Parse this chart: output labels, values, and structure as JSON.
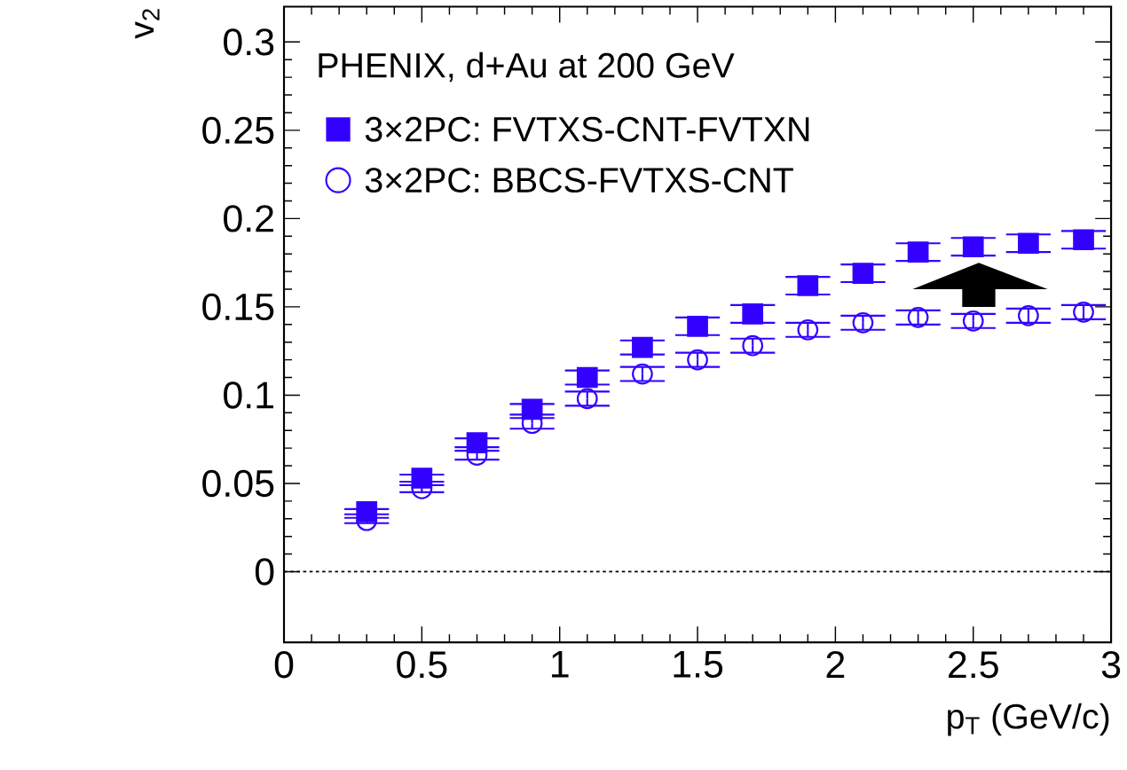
{
  "chart_data": {
    "type": "scatter",
    "legend_title": "PHENIX, d+Au at 200 GeV",
    "xlabel": "p$_{T}$ (GeV/c)",
    "ylabel": "v$_{2}$",
    "x": [
      0.3,
      0.5,
      0.7,
      0.9,
      1.1,
      1.3,
      1.5,
      1.7,
      1.9,
      2.1,
      2.3,
      2.5,
      2.7,
      2.9
    ],
    "series": [
      {
        "name": "3×2PC: FVTXS-CNT-FVTXN",
        "color": "#3300ff",
        "marker": "square",
        "values": [
          0.034,
          0.053,
          0.073,
          0.092,
          0.11,
          0.127,
          0.139,
          0.146,
          0.162,
          0.169,
          0.181,
          0.184,
          0.186,
          0.188
        ],
        "errors": [
          0.0015,
          0.002,
          0.0025,
          0.003,
          0.004,
          0.004,
          0.005,
          0.005,
          0.005,
          0.005,
          0.005,
          0.005,
          0.005,
          0.005
        ]
      },
      {
        "name": "3×2PC: BBCS-FVTXS-CNT",
        "color": "#3300ff",
        "marker": "circle",
        "values": [
          0.029,
          0.047,
          0.066,
          0.084,
          0.098,
          0.112,
          0.12,
          0.128,
          0.137,
          0.141,
          0.144,
          0.142,
          0.145,
          0.147
        ],
        "errors": [
          0.0015,
          0.002,
          0.0025,
          0.003,
          0.004,
          0.004,
          0.004,
          0.004,
          0.004,
          0.004,
          0.004,
          0.004,
          0.004,
          0.004
        ]
      }
    ],
    "xlim": [
      0,
      3
    ],
    "ylim": [
      -0.04,
      0.32
    ],
    "xticks": [
      0,
      0.5,
      1,
      1.5,
      2,
      2.5,
      3
    ],
    "yticks": [
      0,
      0.05,
      0.1,
      0.15,
      0.2,
      0.25,
      0.3
    ],
    "ref_lines": [
      {
        "axis": "y",
        "value": 0,
        "line_style": "dotted",
        "color": "#000000"
      }
    ],
    "legend": "top left",
    "grid": false
  }
}
